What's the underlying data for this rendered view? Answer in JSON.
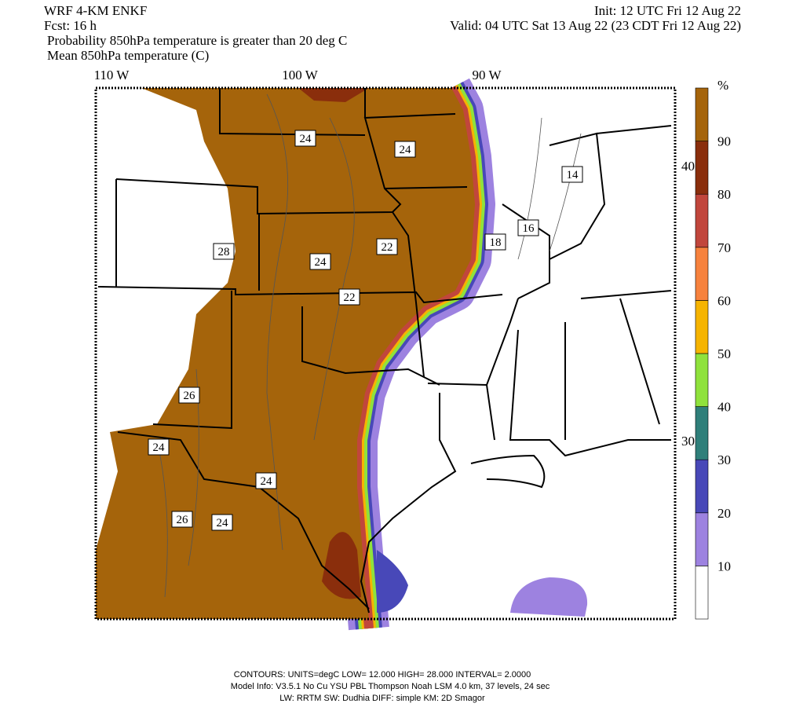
{
  "header": {
    "model": "WRF 4-KM ENKF",
    "forecast": "Fcst:   16 h",
    "init": "Init: 12 UTC Fri 12 Aug 22",
    "valid": "Valid: 04 UTC Sat 13 Aug 22 (23 CDT Fri 12 Aug 22)",
    "line1": "Probability 850hPa temperature is greater than 20 deg C",
    "line2": "Mean 850hPa temperature (C)"
  },
  "map": {
    "longitudes": [
      "110 W",
      "100 W",
      "90 W"
    ],
    "latitudes": [
      "40 N",
      "30 N"
    ],
    "contour_labels": [
      "24",
      "24",
      "14",
      "28",
      "24",
      "22",
      "18",
      "16",
      "22",
      "26",
      "24",
      "24",
      "26",
      "24"
    ]
  },
  "colorbar": {
    "unit": "%",
    "levels": [
      10,
      20,
      30,
      40,
      50,
      60,
      70,
      80,
      90
    ],
    "colors": [
      "#ffffff",
      "#9d82e0",
      "#4848b8",
      "#2f7f7a",
      "#8fe23c",
      "#f6b400",
      "#f7823d",
      "#c1463c",
      "#8a2e0c",
      "#a5640b"
    ]
  },
  "footer": {
    "line1": "CONTOURS:  UNITS=degC  LOW=   12.000       HIGH=  28.000       INTERVAL=    2.0000",
    "line2": "Model Info: V3.5.1    No Cu    YSU PBL  Thompson      Noah LSM  4.0 km,  37 levels,    24 sec",
    "line3": "LW: RRTM SW: Dudhia  DIFF: simple KM: 2D Smagor"
  }
}
